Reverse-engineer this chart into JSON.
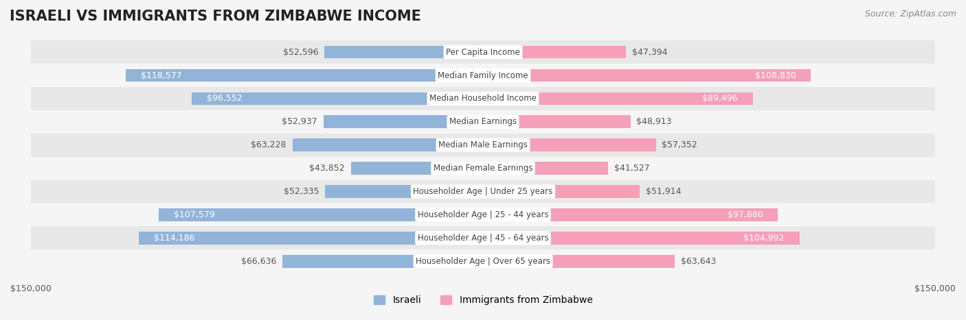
{
  "title": "ISRAELI VS IMMIGRANTS FROM ZIMBABWE INCOME",
  "source": "Source: ZipAtlas.com",
  "categories": [
    "Per Capita Income",
    "Median Family Income",
    "Median Household Income",
    "Median Earnings",
    "Median Male Earnings",
    "Median Female Earnings",
    "Householder Age | Under 25 years",
    "Householder Age | 25 - 44 years",
    "Householder Age | 45 - 64 years",
    "Householder Age | Over 65 years"
  ],
  "israeli_values": [
    52596,
    118577,
    96552,
    52937,
    63228,
    43852,
    52335,
    107579,
    114186,
    66636
  ],
  "zimbabwe_values": [
    47394,
    108830,
    89496,
    48913,
    57352,
    41527,
    51914,
    97880,
    104992,
    63643
  ],
  "israeli_labels": [
    "$52,596",
    "$118,577",
    "$96,552",
    "$52,937",
    "$63,228",
    "$43,852",
    "$52,335",
    "$107,579",
    "$114,186",
    "$66,636"
  ],
  "zimbabwe_labels": [
    "$47,394",
    "$108,830",
    "$89,496",
    "$48,913",
    "$57,352",
    "$41,527",
    "$51,914",
    "$97,880",
    "$104,992",
    "$63,643"
  ],
  "max_value": 150000,
  "israeli_color": "#92b4d8",
  "israeli_color_dark": "#6495c8",
  "zimbabwe_color": "#f5a0b8",
  "zimbabwe_color_dark": "#f06090",
  "bg_color": "#f5f5f5",
  "row_bg": "#ffffff",
  "row_alt_bg": "#f0f0f0",
  "label_threshold": 80000,
  "title_fontsize": 15,
  "source_fontsize": 9,
  "bar_label_fontsize": 9,
  "category_fontsize": 8.5,
  "legend_fontsize": 10,
  "axis_label_fontsize": 9
}
